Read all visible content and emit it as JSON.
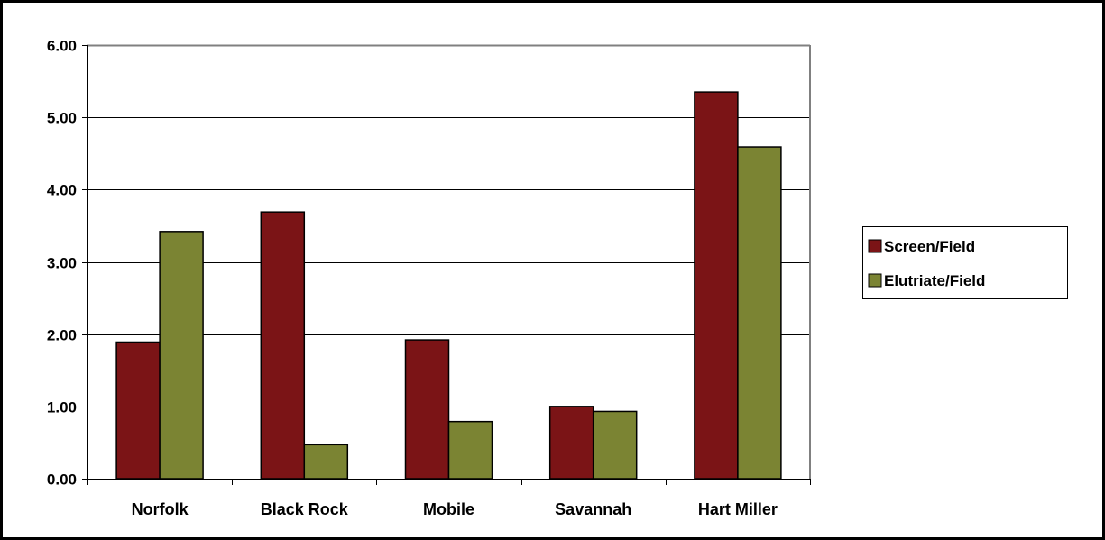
{
  "chart_data": {
    "type": "bar",
    "title": "",
    "xlabel": "",
    "ylabel": "",
    "categories": [
      "Norfolk",
      "Black Rock",
      "Mobile",
      "Savannah",
      "Hart Miller"
    ],
    "series": [
      {
        "name": "Screen/Field",
        "color": "#7b1416",
        "values": [
          1.89,
          3.69,
          1.92,
          1.0,
          5.35
        ]
      },
      {
        "name": "Elutriate/Field",
        "color": "#7b8433",
        "values": [
          3.42,
          0.47,
          0.79,
          0.93,
          4.59
        ]
      }
    ],
    "ylim": [
      0,
      6
    ],
    "yticks": [
      "0.00",
      "1.00",
      "2.00",
      "3.00",
      "4.00",
      "5.00",
      "6.00"
    ],
    "grid": true,
    "legend_position": "right"
  }
}
